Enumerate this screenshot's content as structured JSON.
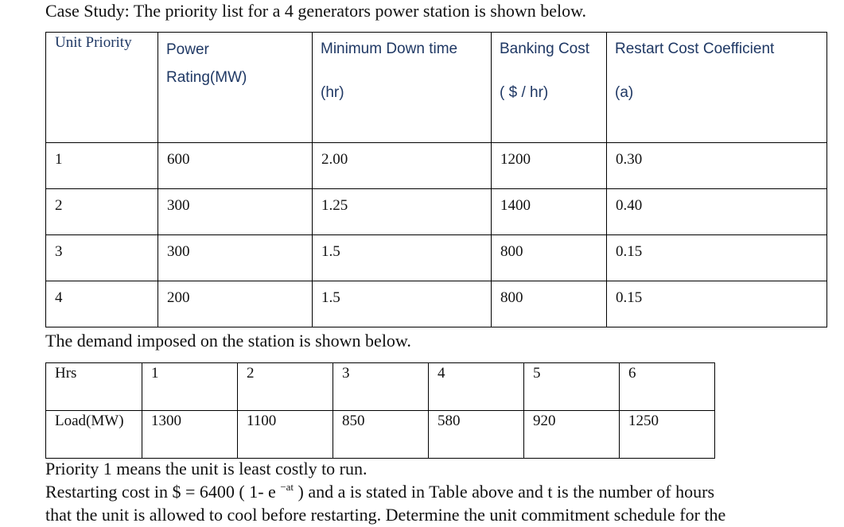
{
  "intro": "Case Study: The priority list for a 4 generators power station is shown below.",
  "unit_table": {
    "headers": {
      "unit_priority": "Unit Priority",
      "power_line1": "Power",
      "power_line2": "Rating(MW)",
      "mdt_line1": "Minimum Down time",
      "mdt_line2": "(hr)",
      "bank_line1": "Banking Cost",
      "bank_line2": "( $ / hr)",
      "restart_line1": "Restart Cost Coefficient",
      "restart_line2": "(a)"
    },
    "rows": [
      {
        "unit": "1",
        "power": "600",
        "mdt": "2.00",
        "banking": "1200",
        "coef": "0.30"
      },
      {
        "unit": "2",
        "power": "300",
        "mdt": "1.25",
        "banking": "1400",
        "coef": "0.40"
      },
      {
        "unit": "3",
        "power": "300",
        "mdt": "1.5",
        "banking": "800",
        "coef": "0.15"
      },
      {
        "unit": "4",
        "power": "200",
        "mdt": "1.5",
        "banking": "800",
        "coef": "0.15"
      }
    ]
  },
  "demand_intro": "The demand imposed on the station is shown below.",
  "demand_table": {
    "hrs_label": "Hrs",
    "hours": [
      "1",
      "2",
      "3",
      "4",
      "5",
      "6"
    ],
    "load_label": "Load(MW)",
    "loads": [
      "1300",
      "1100",
      "850",
      "580",
      "920",
      "1250"
    ]
  },
  "footer": {
    "line1": "Priority 1 means the unit is least costly to run.",
    "line2_before": "Restarting cost in $ = 6400 ( 1- e ",
    "line2_sup": "−at",
    "line2_after": " ) and a is stated in Table above and t is the number of hours",
    "line3": "that the unit is allowed to cool before restarting. Determine the unit commitment schedule for the"
  }
}
